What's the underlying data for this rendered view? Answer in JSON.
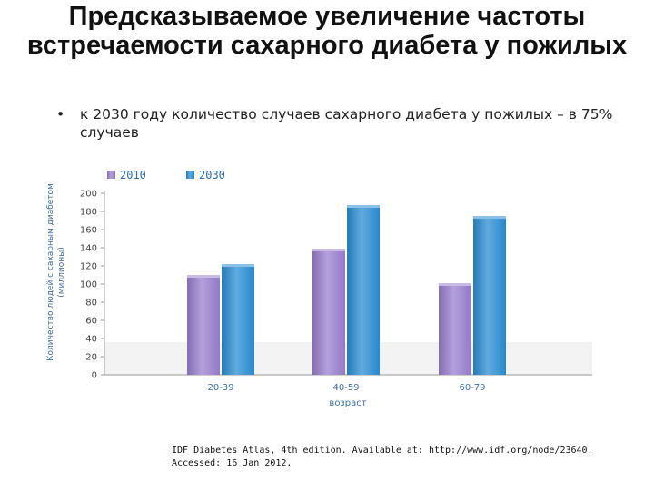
{
  "slide": {
    "title": "Предсказываемое увеличение частоты встречаемости сахарного диабета у пожилых",
    "bullet_marker": "•",
    "bullet_text": "к 2030 году количество случаев сахарного диабета у пожилых – в 75% случаев",
    "source_line1": "IDF Diabetes Atlas, 4th edition. Available at: http://www.idf.org/node/23640.",
    "source_line2": "Accessed: 16 Jan 2012."
  },
  "chart_data": {
    "type": "bar",
    "categories": [
      "20-39",
      "40-59",
      "60-79"
    ],
    "series": [
      {
        "name": "2010",
        "values": [
          108,
          137,
          99
        ],
        "color": "#9b80d0"
      },
      {
        "name": "2030",
        "values": [
          120,
          185,
          173
        ],
        "color": "#2b8fd6"
      }
    ],
    "xlabel": "возраст",
    "ylabel_line1": "Количество людей с сахарным диабетом",
    "ylabel_line2": "(миллионы)",
    "ylim": [
      0,
      200
    ],
    "yticks": [
      0,
      20,
      40,
      60,
      80,
      100,
      120,
      140,
      160,
      180,
      200
    ],
    "legend_position": "top",
    "grid": false
  }
}
